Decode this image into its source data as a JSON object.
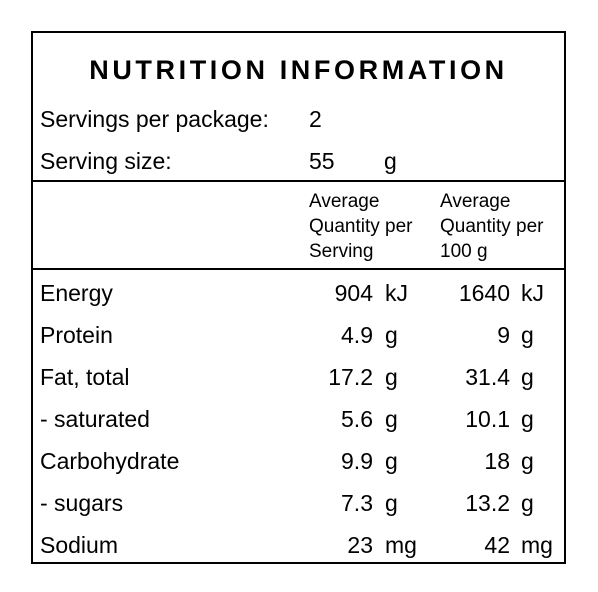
{
  "title": "NUTRITION INFORMATION",
  "servings": {
    "label": "Servings per package:",
    "value": "2"
  },
  "serving_size": {
    "label": "Serving size:",
    "value": "55",
    "unit": "g"
  },
  "columns": {
    "per_serving": [
      "Average",
      "Quantity per",
      "Serving"
    ],
    "per_100g": [
      "Average",
      "Quantity per",
      "100 g"
    ]
  },
  "rows": [
    {
      "name": "Energy",
      "serving": "904",
      "serving_unit": "kJ",
      "per100": "1640",
      "per100_unit": "kJ"
    },
    {
      "name": "Protein",
      "serving": "4.9",
      "serving_unit": "g",
      "per100": "9",
      "per100_unit": "g"
    },
    {
      "name": "Fat, total",
      "serving": "17.2",
      "serving_unit": "g",
      "per100": "31.4",
      "per100_unit": "g"
    },
    {
      "name": "- saturated",
      "serving": "5.6",
      "serving_unit": "g",
      "per100": "10.1",
      "per100_unit": "g"
    },
    {
      "name": "Carbohydrate",
      "serving": "9.9",
      "serving_unit": "g",
      "per100": "18",
      "per100_unit": "g"
    },
    {
      "name": "- sugars",
      "serving": "7.3",
      "serving_unit": "g",
      "per100": "13.2",
      "per100_unit": "g"
    },
    {
      "name": "Sodium",
      "serving": "23",
      "serving_unit": "mg",
      "per100": "42",
      "per100_unit": "mg"
    }
  ]
}
